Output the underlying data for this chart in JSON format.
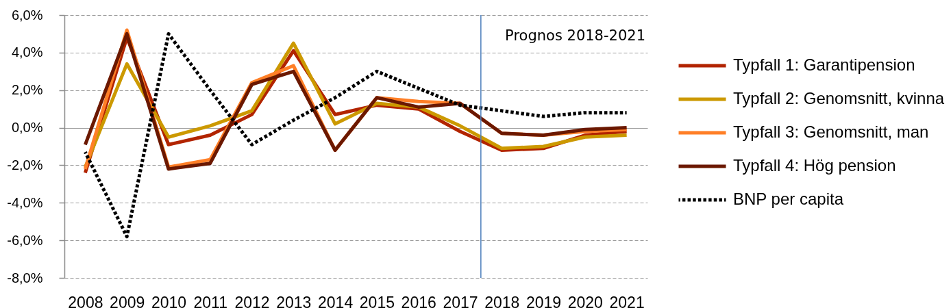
{
  "chart_data": {
    "type": "line",
    "x": [
      2008,
      2009,
      2010,
      2011,
      2012,
      2013,
      2014,
      2015,
      2016,
      2017,
      2018,
      2019,
      2020,
      2021
    ],
    "xlim": [
      2007.5,
      2021.5
    ],
    "xticks": [
      2008,
      2009,
      2010,
      2011,
      2012,
      2013,
      2014,
      2015,
      2016,
      2017,
      2018,
      2019,
      2020,
      2021
    ],
    "ylim": [
      -8,
      6
    ],
    "yticks": [
      {
        "value": -8,
        "label": "-8,0%"
      },
      {
        "value": -6,
        "label": "-6,0%"
      },
      {
        "value": -4,
        "label": "-4,0%"
      },
      {
        "value": -2,
        "label": "-2,0%"
      },
      {
        "value": 0,
        "label": "0,0%"
      },
      {
        "value": 2,
        "label": "2,0%"
      },
      {
        "value": 4,
        "label": "4,0%"
      },
      {
        "value": 6,
        "label": "6,0%"
      }
    ],
    "grid": "y",
    "legend": "right",
    "series": [
      {
        "name": "Typfall 1: Garantipension",
        "color": "#b22400",
        "line_style": "solid",
        "values": [
          -2.4,
          4.8,
          -0.9,
          -0.4,
          0.7,
          4.1,
          0.7,
          1.2,
          1.0,
          -0.2,
          -1.2,
          -1.1,
          -0.4,
          -0.2
        ]
      },
      {
        "name": "Typfall 2: Genomsnitt, kvinna",
        "color": "#cc9900",
        "line_style": "solid",
        "values": [
          -2.1,
          3.4,
          -0.5,
          0.1,
          0.9,
          4.5,
          0.2,
          1.3,
          1.1,
          0.1,
          -1.1,
          -1.0,
          -0.5,
          -0.4
        ]
      },
      {
        "name": "Typfall 3: Genomsnitt, man",
        "color": "#ff7f27",
        "line_style": "solid",
        "values": [
          -2.2,
          5.2,
          -2.1,
          -1.7,
          2.4,
          3.3,
          -1.2,
          1.6,
          1.4,
          1.3,
          -0.3,
          -0.4,
          -0.2,
          -0.1
        ]
      },
      {
        "name": "Typfall 4: Hög pension",
        "color": "#6b1800",
        "line_style": "solid",
        "values": [
          -0.9,
          5.0,
          -2.2,
          -1.9,
          2.3,
          3.0,
          -1.2,
          1.6,
          1.1,
          1.3,
          -0.3,
          -0.4,
          -0.1,
          0.0
        ]
      },
      {
        "name": "BNP per capita",
        "color": "#000000",
        "line_style": "dotted",
        "values": [
          -1.3,
          -5.8,
          5.0,
          2.0,
          -0.9,
          0.4,
          1.6,
          3.0,
          2.1,
          1.2,
          0.9,
          0.6,
          0.8,
          0.8
        ]
      }
    ],
    "ref_lines": [
      {
        "axis": "x",
        "value": 2017.5,
        "color": "#4a7ebb"
      }
    ],
    "annotations": [
      "Prognos 2018-2021"
    ]
  }
}
